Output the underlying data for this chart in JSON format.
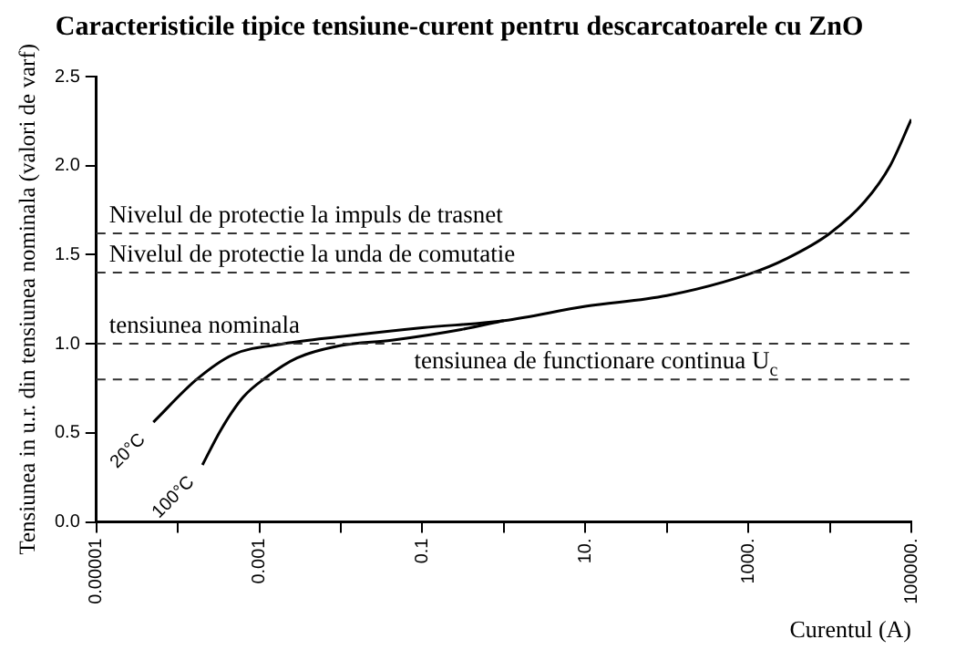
{
  "chart_data": {
    "type": "line",
    "title": "Caracteristicile tipice tensiune-curent pentru descarcatoarele cu ZnO",
    "xlabel": "Curentul (A)",
    "ylabel": "Tensiunea in u.r. din tensiunea nominala (valori de varf)",
    "log": "x",
    "xlim": [
      1e-05,
      100000
    ],
    "xticks": [
      {
        "value": 1e-05,
        "label": "0.00001"
      },
      {
        "value": 0.0001,
        "label": null
      },
      {
        "value": 0.001,
        "label": "0.001"
      },
      {
        "value": 0.01,
        "label": null
      },
      {
        "value": 0.1,
        "label": "0.1"
      },
      {
        "value": 1,
        "label": null
      },
      {
        "value": 10,
        "label": "10."
      },
      {
        "value": 100,
        "label": null
      },
      {
        "value": 1000,
        "label": "1000."
      },
      {
        "value": 10000,
        "label": null
      },
      {
        "value": 100000,
        "label": "100000."
      }
    ],
    "ylim": [
      0,
      2.5
    ],
    "yticks": [
      {
        "value": 0,
        "label": "0.0"
      },
      {
        "value": 0.5,
        "label": "0.5"
      },
      {
        "value": 1,
        "label": "1.0"
      },
      {
        "value": 1.5,
        "label": "1.5"
      },
      {
        "value": 2,
        "label": "2.0"
      },
      {
        "value": 2.5,
        "label": "2.5"
      }
    ],
    "grid": false,
    "legend": false,
    "marker": "none",
    "line_style": "solid",
    "series": [
      {
        "name": "20°C",
        "color": "#000000",
        "x": [
          5e-05,
          0.00017,
          0.00048,
          0.002,
          0.01,
          0.1,
          1,
          10,
          100,
          1000,
          3000,
          10000,
          27000,
          55000,
          100000
        ],
        "values": [
          0.56,
          0.8,
          0.94,
          1.0,
          1.04,
          1.09,
          1.13,
          1.21,
          1.27,
          1.39,
          1.48,
          1.62,
          1.8,
          2.0,
          2.26
        ]
      },
      {
        "name": "100°C",
        "color": "#000000",
        "x": [
          0.0002,
          0.00034,
          0.00063,
          0.0012,
          0.0029,
          0.01,
          0.042,
          0.3,
          1
        ],
        "values": [
          0.32,
          0.52,
          0.7,
          0.81,
          0.92,
          0.99,
          1.02,
          1.08,
          1.13
        ]
      }
    ],
    "ref_lines": [
      {
        "axis": "y",
        "value": 1.62,
        "label": "Nivelul de protectie la impuls de trasnet",
        "line_style": "dashed"
      },
      {
        "axis": "y",
        "value": 1.4,
        "label": "Nivelul de protectie la unda de comutatie",
        "line_style": "dashed"
      },
      {
        "axis": "y",
        "value": 1.0,
        "label": "tensiunea nominala",
        "line_style": "dashed"
      },
      {
        "axis": "y",
        "value": 0.8,
        "label": "tensiunea de functionare continua U$_{c}$",
        "line_style": "dashed"
      }
    ]
  }
}
